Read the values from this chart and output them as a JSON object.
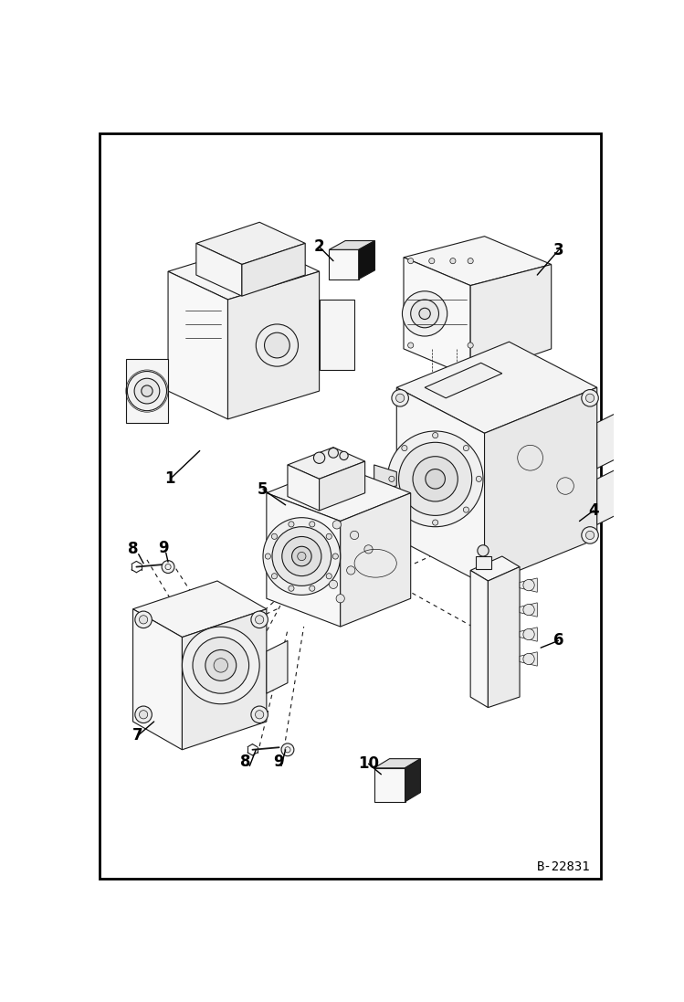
{
  "figure_width": 7.49,
  "figure_height": 10.97,
  "dpi": 100,
  "background_color": "#ffffff",
  "border_color": "#000000",
  "border_linewidth": 2.0,
  "diagram_code": "B-22831",
  "label_fontsize": 12,
  "label_fontweight": "bold",
  "code_fontsize": 10,
  "line_color": "#1a1a1a",
  "lw_main": 0.8,
  "lw_thin": 0.5,
  "lw_thick": 1.2
}
